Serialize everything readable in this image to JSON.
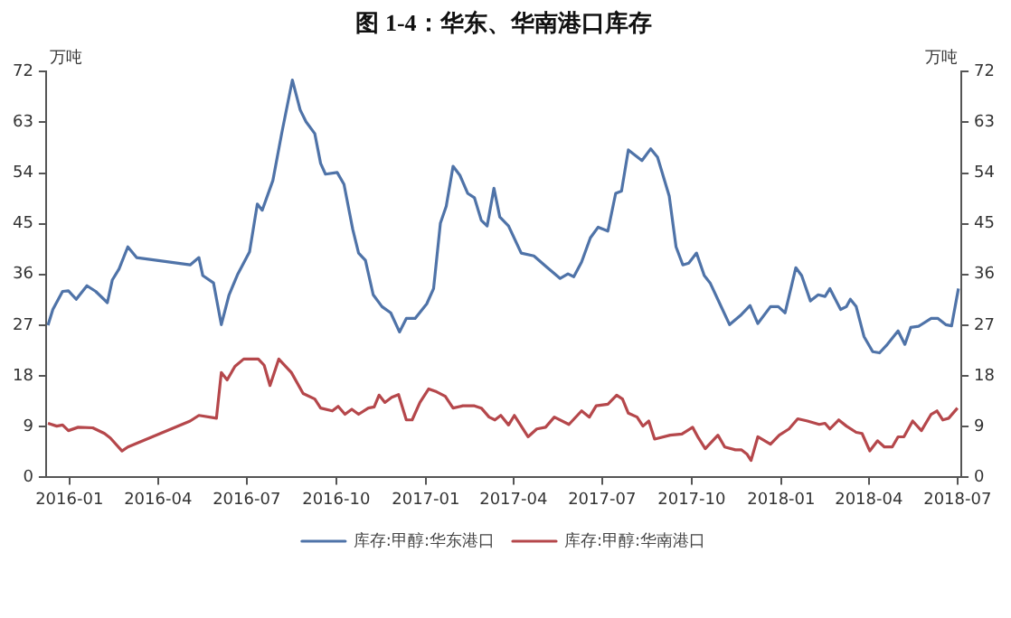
{
  "chart_data": {
    "type": "line",
    "title": "图 1-4：华东、华南港口库存",
    "ylabel": "万吨",
    "y2label": "万吨",
    "xlim": [
      "2015-12-08",
      "2018-07-05"
    ],
    "xticks": [
      {
        "value": "2016-01-01",
        "label": "2016-01"
      },
      {
        "value": "2016-04-01",
        "label": "2016-04"
      },
      {
        "value": "2016-07-01",
        "label": "2016-07"
      },
      {
        "value": "2016-10-01",
        "label": "2016-10"
      },
      {
        "value": "2017-01-01",
        "label": "2017-01"
      },
      {
        "value": "2017-04-01",
        "label": "2017-04"
      },
      {
        "value": "2017-07-01",
        "label": "2017-07"
      },
      {
        "value": "2017-10-01",
        "label": "2017-10"
      },
      {
        "value": "2018-01-01",
        "label": "2018-01"
      },
      {
        "value": "2018-04-01",
        "label": "2018-04"
      },
      {
        "value": "2018-07-01",
        "label": "2018-07"
      }
    ],
    "ylim": [
      0,
      72
    ],
    "yticks": [
      0,
      9,
      18,
      27,
      36,
      45,
      54,
      63,
      72
    ],
    "y2lim": [
      0,
      72
    ],
    "y2ticks": [
      0,
      9,
      18,
      27,
      36,
      45,
      54,
      63,
      72
    ],
    "grid": false,
    "legend": "bottom",
    "marker": "none",
    "line_style": "solid",
    "series": [
      {
        "name": "库存:甲醇:华东港口",
        "color": "#4f73a8",
        "x": [
          "2015-12-10",
          "2015-12-15",
          "2015-12-25",
          "2015-12-31",
          "2016-01-08",
          "2016-01-19",
          "2016-01-28",
          "2016-02-09",
          "2016-02-14",
          "2016-02-21",
          "2016-03-01",
          "2016-03-10",
          "2016-05-04",
          "2016-05-13",
          "2016-05-17",
          "2016-05-28",
          "2016-06-05",
          "2016-06-13",
          "2016-06-22",
          "2016-07-04",
          "2016-07-12",
          "2016-07-17",
          "2016-07-28",
          "2016-08-06",
          "2016-08-17",
          "2016-08-25",
          "2016-08-31",
          "2016-09-09",
          "2016-09-15",
          "2016-09-20",
          "2016-10-02",
          "2016-10-09",
          "2016-10-18",
          "2016-10-24",
          "2016-10-31",
          "2016-11-08",
          "2016-11-17",
          "2016-11-26",
          "2016-12-05",
          "2016-12-12",
          "2016-12-21",
          "2017-01-02",
          "2017-01-09",
          "2017-01-16",
          "2017-01-22",
          "2017-01-29",
          "2017-02-05",
          "2017-02-13",
          "2017-02-20",
          "2017-02-27",
          "2017-03-05",
          "2017-03-12",
          "2017-03-18",
          "2017-03-27",
          "2017-04-09",
          "2017-04-22",
          "2017-05-04",
          "2017-05-19",
          "2017-05-27",
          "2017-06-02",
          "2017-06-10",
          "2017-06-19",
          "2017-06-27",
          "2017-07-07",
          "2017-07-15",
          "2017-07-21",
          "2017-07-28",
          "2017-08-11",
          "2017-08-20",
          "2017-08-27",
          "2017-09-08",
          "2017-09-15",
          "2017-09-22",
          "2017-09-28",
          "2017-10-06",
          "2017-10-14",
          "2017-10-20",
          "2017-10-30",
          "2017-11-09",
          "2017-11-20",
          "2017-11-30",
          "2017-12-08",
          "2017-12-21",
          "2017-12-29",
          "2018-01-05",
          "2018-01-16",
          "2018-01-22",
          "2018-01-31",
          "2018-02-08",
          "2018-02-15",
          "2018-02-20",
          "2018-03-03",
          "2018-03-09",
          "2018-03-13",
          "2018-03-19",
          "2018-03-27",
          "2018-04-05",
          "2018-04-12",
          "2018-04-19",
          "2018-05-01",
          "2018-05-08",
          "2018-05-14",
          "2018-05-22",
          "2018-06-04",
          "2018-06-11",
          "2018-06-19",
          "2018-06-25",
          "2018-07-02"
        ],
        "values": [
          27,
          29.8,
          33,
          33.1,
          31.6,
          34,
          33,
          31,
          35,
          37,
          40.9,
          39,
          37.7,
          39,
          35.8,
          34.5,
          27.1,
          32.4,
          36.1,
          40,
          48.5,
          47.4,
          52.7,
          61,
          70.5,
          65.2,
          63.1,
          61,
          55.7,
          53.8,
          54.1,
          52,
          44,
          39.8,
          38.5,
          32.4,
          30.3,
          29.2,
          25.8,
          28.2,
          28.2,
          30.8,
          33.5,
          45.1,
          48.1,
          55.2,
          53.6,
          50.4,
          49.6,
          45.6,
          44.6,
          51.3,
          46.2,
          44.6,
          39.8,
          39.3,
          37.5,
          35.3,
          36.1,
          35.6,
          38.2,
          42.5,
          44.4,
          43.7,
          50.4,
          50.8,
          58.1,
          56.2,
          58.3,
          56.8,
          49.9,
          40.9,
          37.7,
          38,
          39.8,
          35.8,
          34.5,
          30.8,
          27.1,
          28.7,
          30.5,
          27.3,
          30.3,
          30.3,
          29.2,
          37.2,
          35.8,
          31.3,
          32.4,
          32.1,
          33.5,
          29.8,
          30.3,
          31.6,
          30.3,
          25,
          22.3,
          22.1,
          23.4,
          26,
          23.6,
          26.6,
          26.8,
          28.2,
          28.2,
          27.1,
          26.9,
          33.5
        ]
      },
      {
        "name": "库存:甲醇:华南港口",
        "color": "#b5474b",
        "x": [
          "2015-12-10",
          "2015-12-19",
          "2015-12-25",
          "2015-12-31",
          "2016-01-10",
          "2016-01-25",
          "2016-02-06",
          "2016-02-12",
          "2016-02-24",
          "2016-03-01",
          "2016-05-04",
          "2016-05-13",
          "2016-05-31",
          "2016-06-05",
          "2016-06-11",
          "2016-06-19",
          "2016-06-28",
          "2016-07-13",
          "2016-07-19",
          "2016-07-25",
          "2016-08-03",
          "2016-08-16",
          "2016-08-28",
          "2016-09-09",
          "2016-09-15",
          "2016-09-27",
          "2016-10-03",
          "2016-10-10",
          "2016-10-17",
          "2016-10-24",
          "2016-11-03",
          "2016-11-09",
          "2016-11-14",
          "2016-11-20",
          "2016-11-27",
          "2016-12-04",
          "2016-12-12",
          "2016-12-18",
          "2016-12-26",
          "2017-01-04",
          "2017-01-12",
          "2017-01-21",
          "2017-01-29",
          "2017-02-08",
          "2017-02-20",
          "2017-02-27",
          "2017-03-07",
          "2017-03-13",
          "2017-03-19",
          "2017-03-27",
          "2017-04-02",
          "2017-04-09",
          "2017-04-16",
          "2017-04-25",
          "2017-05-04",
          "2017-05-13",
          "2017-05-28",
          "2017-06-10",
          "2017-06-18",
          "2017-06-25",
          "2017-07-07",
          "2017-07-16",
          "2017-07-22",
          "2017-07-28",
          "2017-08-06",
          "2017-08-12",
          "2017-08-18",
          "2017-08-24",
          "2017-09-09",
          "2017-09-21",
          "2017-10-02",
          "2017-10-08",
          "2017-10-15",
          "2017-10-28",
          "2017-11-04",
          "2017-11-15",
          "2017-11-21",
          "2017-11-27",
          "2017-12-01",
          "2017-12-08",
          "2017-12-21",
          "2017-12-30",
          "2018-01-09",
          "2018-01-18",
          "2018-01-28",
          "2018-02-09",
          "2018-02-15",
          "2018-02-20",
          "2018-03-01",
          "2018-03-09",
          "2018-03-19",
          "2018-03-25",
          "2018-04-02",
          "2018-04-10",
          "2018-04-17",
          "2018-04-25",
          "2018-05-01",
          "2018-05-07",
          "2018-05-16",
          "2018-05-25",
          "2018-06-04",
          "2018-06-10",
          "2018-06-16",
          "2018-06-22",
          "2018-07-01"
        ],
        "values": [
          9.6,
          9.1,
          9.3,
          8.3,
          8.9,
          8.8,
          7.8,
          7,
          4.7,
          5.4,
          10,
          11,
          10.5,
          18.6,
          17.3,
          19.7,
          21,
          21,
          19.9,
          16.3,
          21,
          18.6,
          14.9,
          13.9,
          12.3,
          11.8,
          12.6,
          11.2,
          12.1,
          11.2,
          12.3,
          12.5,
          14.6,
          13.3,
          14.2,
          14.7,
          10.2,
          10.2,
          13.3,
          15.7,
          15.2,
          14.4,
          12.3,
          12.7,
          12.7,
          12.3,
          10.7,
          10.2,
          11,
          9.3,
          11,
          9.1,
          7.2,
          8.6,
          8.9,
          10.7,
          9.4,
          11.8,
          10.7,
          12.7,
          13,
          14.6,
          13.9,
          11.4,
          10.7,
          9.1,
          10,
          6.8,
          7.5,
          7.7,
          8.9,
          7,
          5.1,
          7.5,
          5.4,
          4.9,
          4.9,
          4.1,
          3,
          7.2,
          5.9,
          7.5,
          8.6,
          10.4,
          10,
          9.4,
          9.6,
          8.6,
          10.2,
          9.1,
          8,
          7.8,
          4.7,
          6.5,
          5.4,
          5.4,
          7.2,
          7.2,
          10,
          8.3,
          11.2,
          11.8,
          10.2,
          10.5,
          12.3
        ]
      }
    ]
  }
}
